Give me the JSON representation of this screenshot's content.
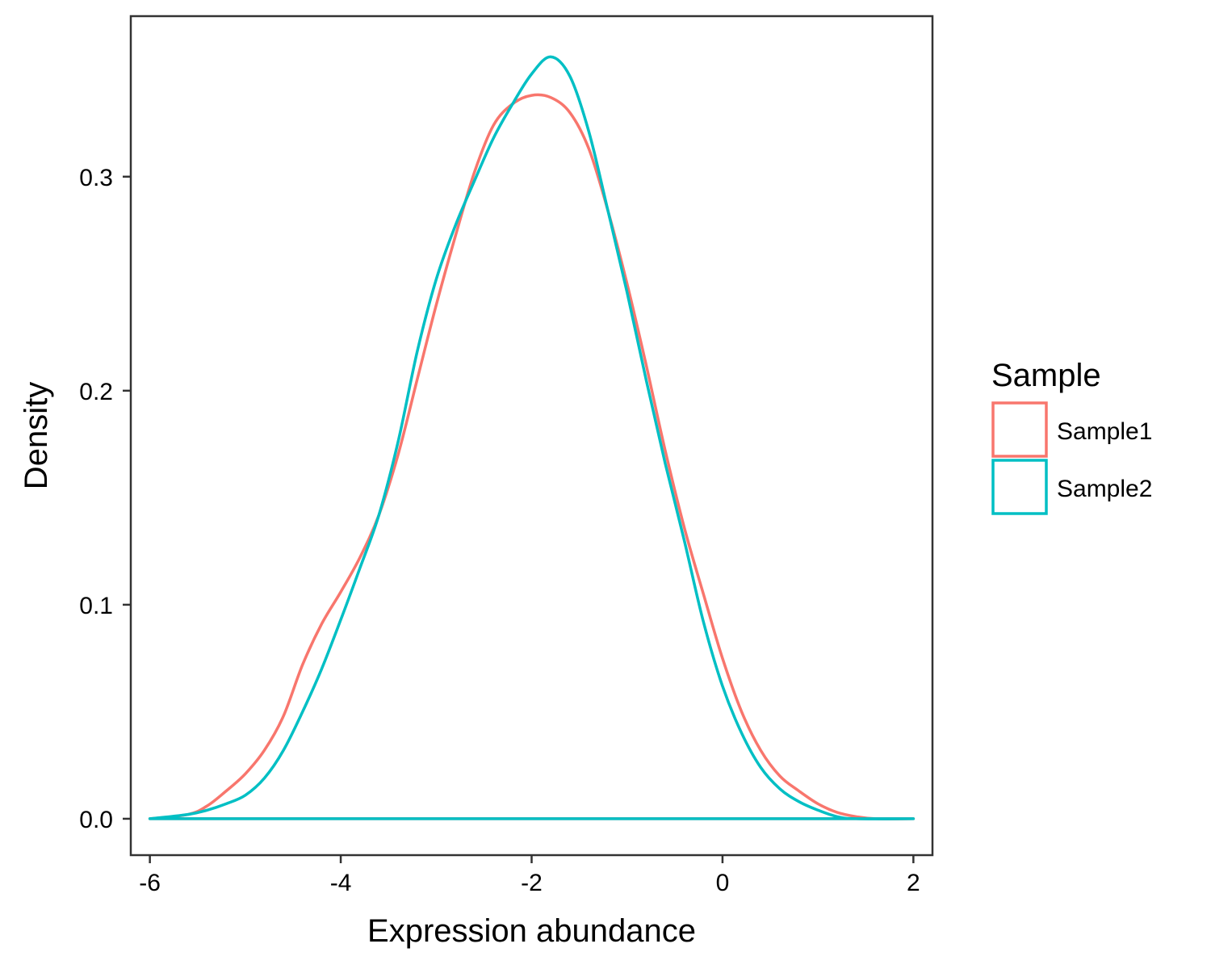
{
  "chart_data": {
    "type": "line",
    "subtype": "density",
    "title": "",
    "xlabel": "Expression abundance",
    "ylabel": "Density",
    "xlim": [
      -6.2,
      2.2
    ],
    "ylim": [
      -0.017,
      0.375
    ],
    "xticks": [
      -6,
      -4,
      -2,
      0,
      2
    ],
    "yticks": [
      0.0,
      0.1,
      0.2,
      0.3
    ],
    "xtick_labels": [
      "-6",
      "-4",
      "-2",
      "0",
      "2"
    ],
    "ytick_labels": [
      "0.0",
      "0.1",
      "0.2",
      "0.3"
    ],
    "grid": false,
    "legend": {
      "title": "Sample",
      "placement": "right"
    },
    "series": [
      {
        "name": "Sample1",
        "color": "#F8766D",
        "points": [
          [
            -6.0,
            0.0
          ],
          [
            -5.6,
            0.002
          ],
          [
            -5.4,
            0.006
          ],
          [
            -5.2,
            0.013
          ],
          [
            -5.0,
            0.021
          ],
          [
            -4.8,
            0.032
          ],
          [
            -4.6,
            0.048
          ],
          [
            -4.4,
            0.072
          ],
          [
            -4.2,
            0.091
          ],
          [
            -4.0,
            0.106
          ],
          [
            -3.8,
            0.122
          ],
          [
            -3.6,
            0.142
          ],
          [
            -3.4,
            0.17
          ],
          [
            -3.2,
            0.205
          ],
          [
            -3.0,
            0.24
          ],
          [
            -2.8,
            0.272
          ],
          [
            -2.6,
            0.302
          ],
          [
            -2.4,
            0.324
          ],
          [
            -2.2,
            0.334
          ],
          [
            -2.0,
            0.338
          ],
          [
            -1.8,
            0.337
          ],
          [
            -1.6,
            0.33
          ],
          [
            -1.4,
            0.313
          ],
          [
            -1.2,
            0.284
          ],
          [
            -1.0,
            0.25
          ],
          [
            -0.8,
            0.212
          ],
          [
            -0.6,
            0.172
          ],
          [
            -0.4,
            0.136
          ],
          [
            -0.2,
            0.105
          ],
          [
            0.0,
            0.075
          ],
          [
            0.2,
            0.05
          ],
          [
            0.4,
            0.032
          ],
          [
            0.6,
            0.02
          ],
          [
            0.8,
            0.013
          ],
          [
            1.0,
            0.007
          ],
          [
            1.2,
            0.003
          ],
          [
            1.4,
            0.001
          ],
          [
            1.6,
            0.0
          ],
          [
            2.0,
            0.0
          ]
        ]
      },
      {
        "name": "Sample2",
        "color": "#00BFC4",
        "points": [
          [
            -6.0,
            0.0
          ],
          [
            -5.6,
            0.002
          ],
          [
            -5.4,
            0.004
          ],
          [
            -5.2,
            0.007
          ],
          [
            -5.0,
            0.011
          ],
          [
            -4.8,
            0.019
          ],
          [
            -4.6,
            0.032
          ],
          [
            -4.4,
            0.05
          ],
          [
            -4.2,
            0.07
          ],
          [
            -4.0,
            0.093
          ],
          [
            -3.8,
            0.117
          ],
          [
            -3.6,
            0.142
          ],
          [
            -3.4,
            0.176
          ],
          [
            -3.2,
            0.218
          ],
          [
            -3.0,
            0.252
          ],
          [
            -2.8,
            0.277
          ],
          [
            -2.6,
            0.298
          ],
          [
            -2.4,
            0.318
          ],
          [
            -2.2,
            0.334
          ],
          [
            -2.0,
            0.348
          ],
          [
            -1.8,
            0.356
          ],
          [
            -1.6,
            0.347
          ],
          [
            -1.4,
            0.321
          ],
          [
            -1.2,
            0.284
          ],
          [
            -1.0,
            0.246
          ],
          [
            -0.8,
            0.205
          ],
          [
            -0.6,
            0.166
          ],
          [
            -0.4,
            0.13
          ],
          [
            -0.2,
            0.092
          ],
          [
            0.0,
            0.062
          ],
          [
            0.2,
            0.04
          ],
          [
            0.4,
            0.024
          ],
          [
            0.6,
            0.014
          ],
          [
            0.8,
            0.008
          ],
          [
            1.0,
            0.004
          ],
          [
            1.2,
            0.001
          ],
          [
            1.4,
            0.0
          ],
          [
            2.0,
            0.0
          ]
        ]
      }
    ]
  }
}
